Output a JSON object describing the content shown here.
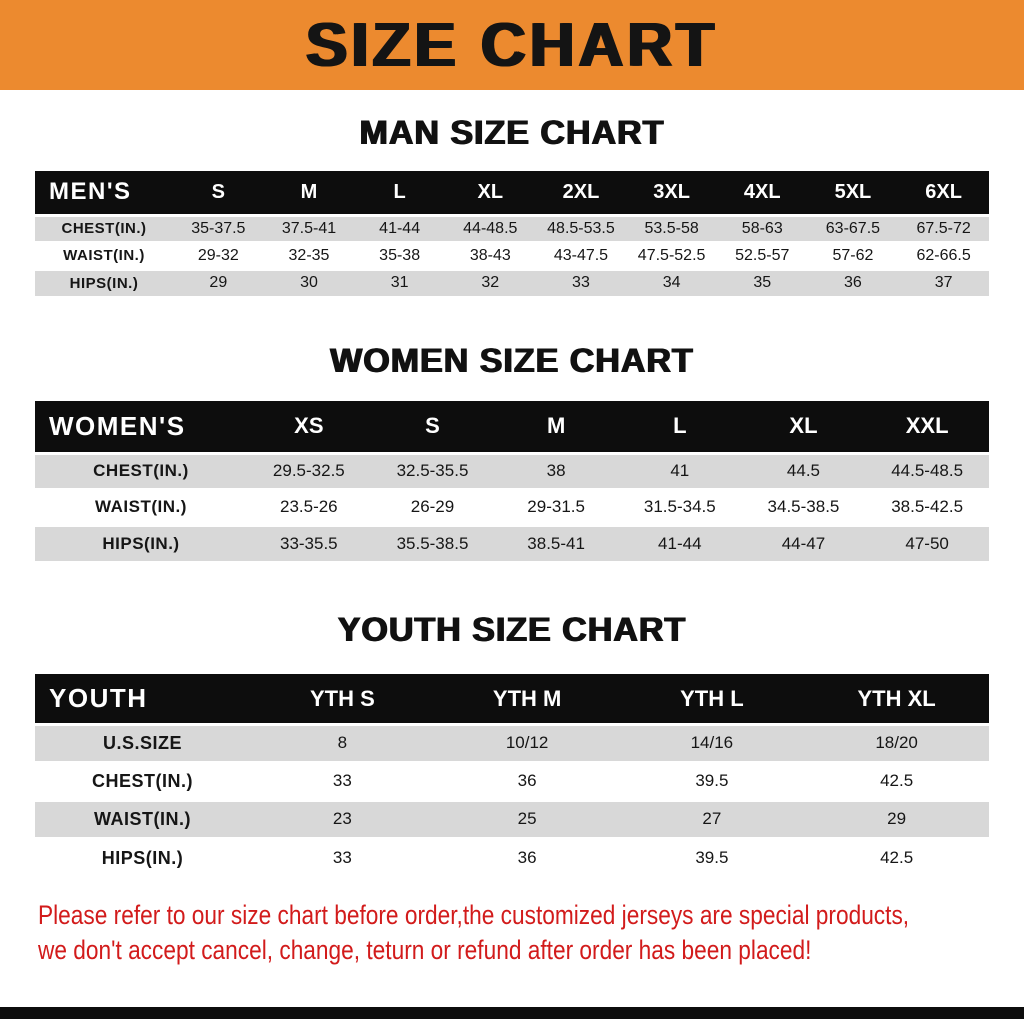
{
  "banner": {
    "title": "SIZE CHART"
  },
  "sections": [
    {
      "heading": "MAN SIZE CHART"
    },
    {
      "heading": "WOMEN SIZE CHART"
    },
    {
      "heading": "YOUTH SIZE CHART"
    }
  ],
  "chart_data": [
    {
      "type": "table",
      "title": "MAN SIZE CHART",
      "corner_label": "MEN'S",
      "columns": [
        "S",
        "M",
        "L",
        "XL",
        "2XL",
        "3XL",
        "4XL",
        "5XL",
        "6XL"
      ],
      "rows": [
        {
          "label": "CHEST(IN.)",
          "values": [
            "35-37.5",
            "37.5-41",
            "41-44",
            "44-48.5",
            "48.5-53.5",
            "53.5-58",
            "58-63",
            "63-67.5",
            "67.5-72"
          ]
        },
        {
          "label": "WAIST(IN.)",
          "values": [
            "29-32",
            "32-35",
            "35-38",
            "38-43",
            "43-47.5",
            "47.5-52.5",
            "52.5-57",
            "57-62",
            "62-66.5"
          ]
        },
        {
          "label": "HIPS(IN.)",
          "values": [
            "29",
            "30",
            "31",
            "32",
            "33",
            "34",
            "35",
            "36",
            "37"
          ]
        }
      ]
    },
    {
      "type": "table",
      "title": "WOMEN SIZE CHART",
      "corner_label": "WOMEN'S",
      "columns": [
        "XS",
        "S",
        "M",
        "L",
        "XL",
        "XXL"
      ],
      "rows": [
        {
          "label": "CHEST(IN.)",
          "values": [
            "29.5-32.5",
            "32.5-35.5",
            "38",
            "41",
            "44.5",
            "44.5-48.5"
          ]
        },
        {
          "label": "WAIST(IN.)",
          "values": [
            "23.5-26",
            "26-29",
            "29-31.5",
            "31.5-34.5",
            "34.5-38.5",
            "38.5-42.5"
          ]
        },
        {
          "label": "HIPS(IN.)",
          "values": [
            "33-35.5",
            "35.5-38.5",
            "38.5-41",
            "41-44",
            "44-47",
            "47-50"
          ]
        }
      ]
    },
    {
      "type": "table",
      "title": "YOUTH SIZE CHART",
      "corner_label": "YOUTH",
      "columns": [
        "YTH S",
        "YTH M",
        "YTH L",
        "YTH XL"
      ],
      "rows": [
        {
          "label": "U.S.SIZE",
          "values": [
            "8",
            "10/12",
            "14/16",
            "18/20"
          ]
        },
        {
          "label": "CHEST(IN.)",
          "values": [
            "33",
            "36",
            "39.5",
            "42.5"
          ]
        },
        {
          "label": "WAIST(IN.)",
          "values": [
            "23",
            "25",
            "27",
            "29"
          ]
        },
        {
          "label": "HIPS(IN.)",
          "values": [
            "33",
            "36",
            "39.5",
            "42.5"
          ]
        }
      ]
    }
  ],
  "note": {
    "line1": "Please refer to our size chart before order,the customized jerseys are special products,",
    "line2": "we don't accept cancel, change, teturn or refund after order has been placed!"
  },
  "colors": {
    "banner_bg": "#ec8a2f",
    "table_header_bg": "#0d0d0d",
    "row_shaded": "#d8d8d8",
    "note_color": "#d21b1b",
    "bottom_bar_bg": "#0d0d0d"
  }
}
